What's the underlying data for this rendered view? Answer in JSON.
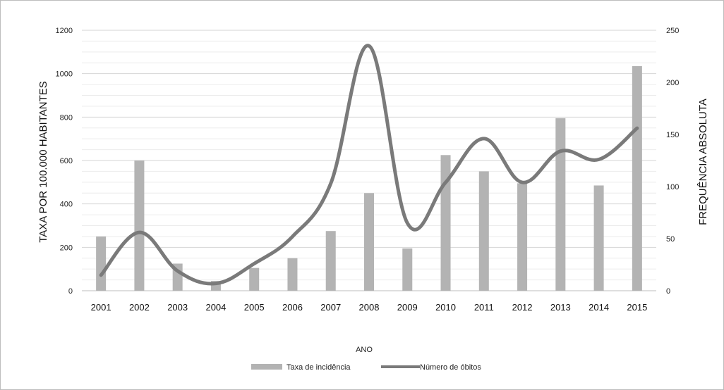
{
  "chart_data": {
    "type": "bar",
    "categories": [
      "2001",
      "2002",
      "2003",
      "2004",
      "2005",
      "2006",
      "2007",
      "2008",
      "2009",
      "2010",
      "2011",
      "2012",
      "2013",
      "2014",
      "2015"
    ],
    "series": [
      {
        "name": "Taxa de incidência",
        "type": "bar",
        "axis": "left",
        "color": "#b3b3b3",
        "values": [
          250,
          600,
          125,
          45,
          105,
          150,
          275,
          450,
          195,
          625,
          550,
          495,
          795,
          485,
          1035
        ]
      },
      {
        "name": "Número de óbitos",
        "type": "line",
        "axis": "right",
        "color": "#7a7a7a",
        "values": [
          15,
          56,
          19,
          7,
          26,
          52,
          103,
          235,
          65,
          104,
          146,
          104,
          134,
          126,
          156
        ]
      }
    ],
    "xlabel": "ANO",
    "ylabel": "TAXA POR 100.000 HABITANTES",
    "y2label": "FREQUÊNCIA ABSOLUTA",
    "ylim": [
      0,
      1200
    ],
    "y2lim": [
      0,
      250
    ],
    "yticks": [
      0,
      200,
      400,
      600,
      800,
      1000,
      1200
    ],
    "y2ticks": [
      0,
      50,
      100,
      150,
      200,
      250
    ],
    "grid": true,
    "legend_position": "bottom"
  }
}
